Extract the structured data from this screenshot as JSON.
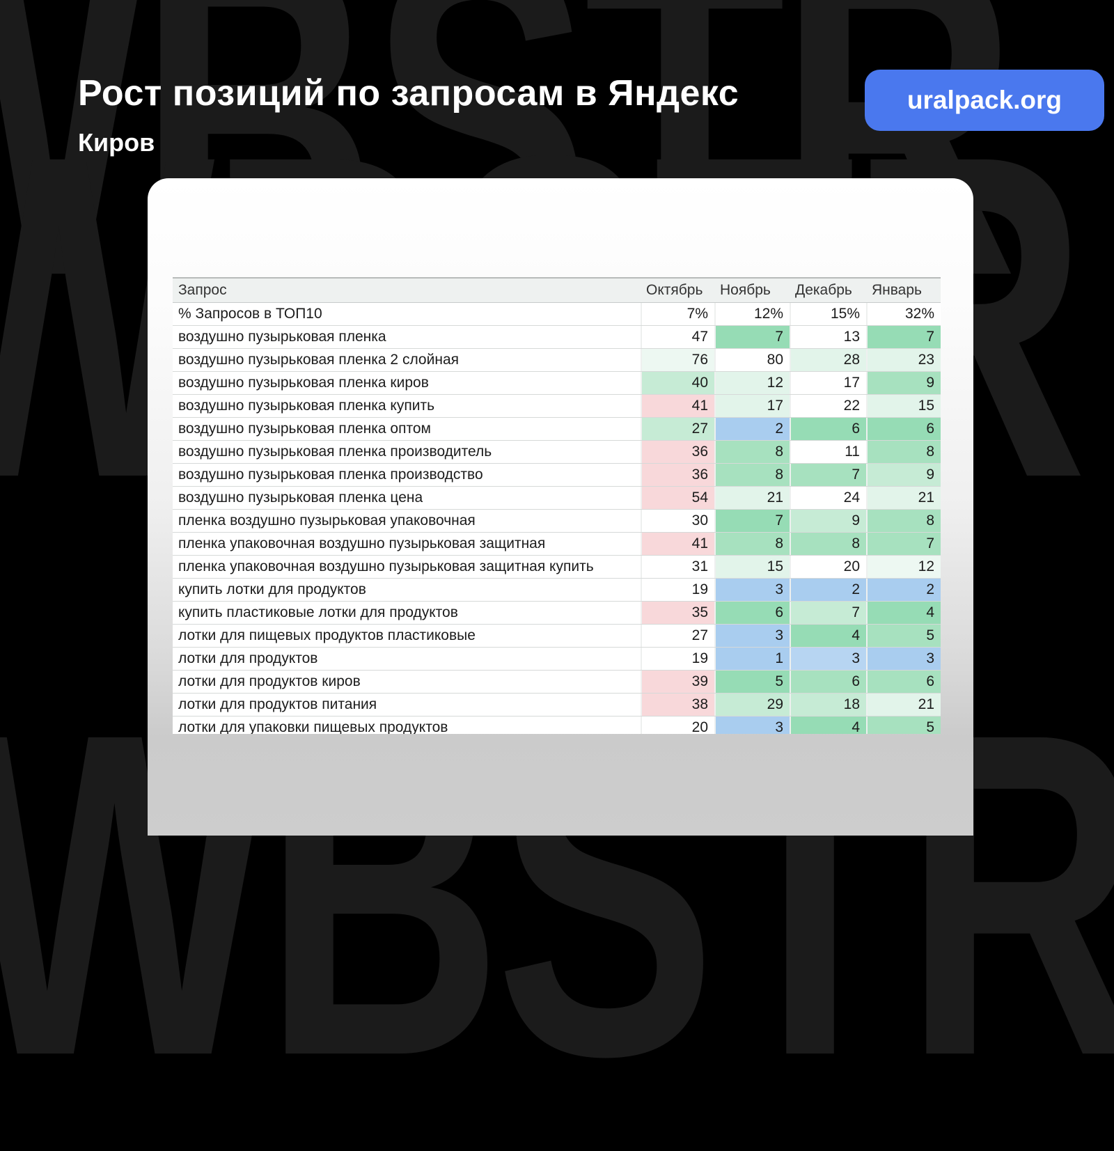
{
  "watermark": {
    "text": "WBSTR",
    "color": "#1b1b1b"
  },
  "header": {
    "title": "Рост позиций по запросам в Яндекс",
    "subtitle": "Киров"
  },
  "brand": {
    "badge_label": "uralpack.org",
    "badge_color": "#4a78ee"
  },
  "chart_data": {
    "type": "table",
    "title": "Рост позиций по запросам в Яндекс",
    "subtitle": "Киров",
    "columns": [
      "Запрос",
      "Октябрь",
      "Ноябрь",
      "Декабрь",
      "Январь"
    ],
    "rows": [
      {
        "label": "% Запросов в ТОП10",
        "values": [
          "7%",
          "12%",
          "15%",
          "32%"
        ]
      },
      {
        "label": "воздушно пузырьковая пленка",
        "values": [
          "47",
          "7",
          "13",
          "7"
        ]
      },
      {
        "label": "воздушно пузырьковая пленка 2 слойная",
        "values": [
          "76",
          "80",
          "28",
          "23"
        ]
      },
      {
        "label": "воздушно пузырьковая пленка киров",
        "values": [
          "40",
          "12",
          "17",
          "9"
        ]
      },
      {
        "label": "воздушно пузырьковая пленка купить",
        "values": [
          "41",
          "17",
          "22",
          "15"
        ]
      },
      {
        "label": "воздушно пузырьковая пленка оптом",
        "values": [
          "27",
          "2",
          "6",
          "6"
        ]
      },
      {
        "label": "воздушно пузырьковая пленка производитель",
        "values": [
          "36",
          "8",
          "11",
          "8"
        ]
      },
      {
        "label": "воздушно пузырьковая пленка производство",
        "values": [
          "36",
          "8",
          "7",
          "9"
        ]
      },
      {
        "label": "воздушно пузырьковая пленка цена",
        "values": [
          "54",
          "21",
          "24",
          "21"
        ]
      },
      {
        "label": "пленка воздушно пузырьковая упаковочная",
        "values": [
          "30",
          "7",
          "9",
          "8"
        ]
      },
      {
        "label": "пленка упаковочная воздушно пузырьковая защитная",
        "values": [
          "41",
          "8",
          "8",
          "7"
        ]
      },
      {
        "label": "пленка упаковочная воздушно пузырьковая защитная купить",
        "values": [
          "31",
          "15",
          "20",
          "12"
        ]
      },
      {
        "label": "купить лотки для продуктов",
        "values": [
          "19",
          "3",
          "2",
          "2"
        ]
      },
      {
        "label": "купить пластиковые лотки для продуктов",
        "values": [
          "35",
          "6",
          "7",
          "4"
        ]
      },
      {
        "label": "лотки для пищевых продуктов пластиковые",
        "values": [
          "27",
          "3",
          "4",
          "5"
        ]
      },
      {
        "label": "лотки для продуктов",
        "values": [
          "19",
          "1",
          "3",
          "3"
        ]
      },
      {
        "label": "лотки для продуктов киров",
        "values": [
          "39",
          "5",
          "6",
          "6"
        ]
      },
      {
        "label": "лотки для продуктов питания",
        "values": [
          "38",
          "29",
          "18",
          "21"
        ]
      },
      {
        "label": "лотки для упаковки пищевых продуктов",
        "values": [
          "20",
          "3",
          "4",
          "5"
        ]
      }
    ]
  },
  "formatting": {
    "palette": {
      "g1": "#96dcb5",
      "g2": "#a7e1bf",
      "g3": "#c6ebd5",
      "g4": "#e2f4ea",
      "g5": "#edf8f2",
      "bl": "#a9cdef",
      "bl2": "#b7d5f2",
      "pk": "#f8d8da"
    },
    "cell_colors": [
      [
        "",
        "",
        "",
        ""
      ],
      [
        "",
        "g1",
        "",
        "g1"
      ],
      [
        "g5",
        "",
        "g4",
        "g4"
      ],
      [
        "g3",
        "g4",
        "",
        "g2"
      ],
      [
        "pk",
        "g4",
        "",
        "g4"
      ],
      [
        "g3",
        "bl",
        "g1",
        "g1"
      ],
      [
        "pk",
        "g2",
        "",
        "g2"
      ],
      [
        "pk",
        "g2",
        "g2",
        "g3"
      ],
      [
        "pk",
        "g4",
        "",
        "g4"
      ],
      [
        "",
        "g1",
        "g3",
        "g2"
      ],
      [
        "pk",
        "g2",
        "g2",
        "g2"
      ],
      [
        "",
        "g4",
        "",
        "g5"
      ],
      [
        "",
        "bl",
        "bl",
        "bl"
      ],
      [
        "pk",
        "g1",
        "g3",
        "g1"
      ],
      [
        "",
        "bl",
        "g1",
        "g2"
      ],
      [
        "",
        "bl",
        "bl2",
        "bl"
      ],
      [
        "pk",
        "g1",
        "g2",
        "g2"
      ],
      [
        "pk",
        "g3",
        "g3",
        "g4"
      ],
      [
        "",
        "bl",
        "g1",
        "g2"
      ]
    ]
  }
}
